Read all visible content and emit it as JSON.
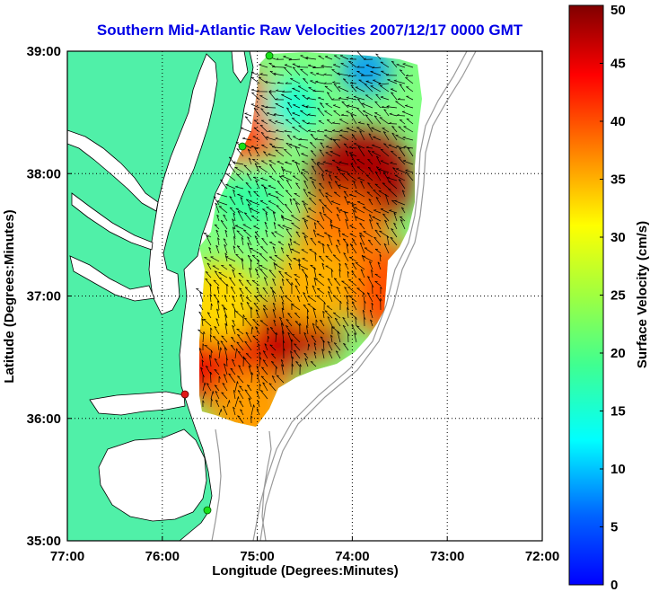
{
  "chart_data": {
    "type": "heatmap",
    "title": "Southern Mid-Atlantic Raw Velocities 2007/12/17 0000 GMT",
    "xlabel": "Longitude (Degrees:Minutes)",
    "ylabel": "Latitude (Degrees:Minutes)",
    "xlim": [
      -77,
      -72
    ],
    "ylim": [
      35,
      39
    ],
    "x_ticks": [
      {
        "value": -77,
        "label": "77:00"
      },
      {
        "value": -76,
        "label": "76:00"
      },
      {
        "value": -75,
        "label": "75:00"
      },
      {
        "value": -74,
        "label": "74:00"
      },
      {
        "value": -73,
        "label": "73:00"
      },
      {
        "value": -72,
        "label": "72:00"
      }
    ],
    "y_ticks": [
      {
        "value": 35,
        "label": "35:00"
      },
      {
        "value": 36,
        "label": "36:00"
      },
      {
        "value": 37,
        "label": "37:00"
      },
      {
        "value": 38,
        "label": "38:00"
      },
      {
        "value": 39,
        "label": "39:00"
      }
    ],
    "grid": true,
    "colorbar": {
      "label": "Surface Velocity (cm/s)",
      "range": [
        0,
        50
      ],
      "ticks": [
        0,
        5,
        10,
        15,
        20,
        25,
        30,
        35,
        40,
        45,
        50
      ],
      "colormap": "jet"
    },
    "hotspots": [
      {
        "lon": -73.9,
        "lat": 37.95,
        "speed": 48
      },
      {
        "lon": -74.65,
        "lat": 36.6,
        "speed": 47
      },
      {
        "lon": -75.4,
        "lat": 36.5,
        "speed": 45
      },
      {
        "lon": -73.6,
        "lat": 37.05,
        "speed": 40
      },
      {
        "lon": -74.1,
        "lat": 37.5,
        "speed": 38
      },
      {
        "lon": -74.4,
        "lat": 37.1,
        "speed": 35
      },
      {
        "lon": -75.15,
        "lat": 38.45,
        "speed": 40
      },
      {
        "lon": -75.4,
        "lat": 36.95,
        "speed": 33
      },
      {
        "lon": -75.05,
        "lat": 36.05,
        "speed": 36
      },
      {
        "lon": -73.85,
        "lat": 38.85,
        "speed": 8
      },
      {
        "lon": -74.65,
        "lat": 38.55,
        "speed": 15
      },
      {
        "lon": -75.1,
        "lat": 37.8,
        "speed": 18
      },
      {
        "lon": -74.3,
        "lat": 36.2,
        "speed": 22
      }
    ],
    "colors": {
      "land": "#50f0a8",
      "coastline": "#000000",
      "bathymetry": "#999999",
      "site_marker": "#18e018",
      "site_marker_alt": "#e01818",
      "vector": "#000000",
      "title_color": "#0000e6"
    }
  }
}
